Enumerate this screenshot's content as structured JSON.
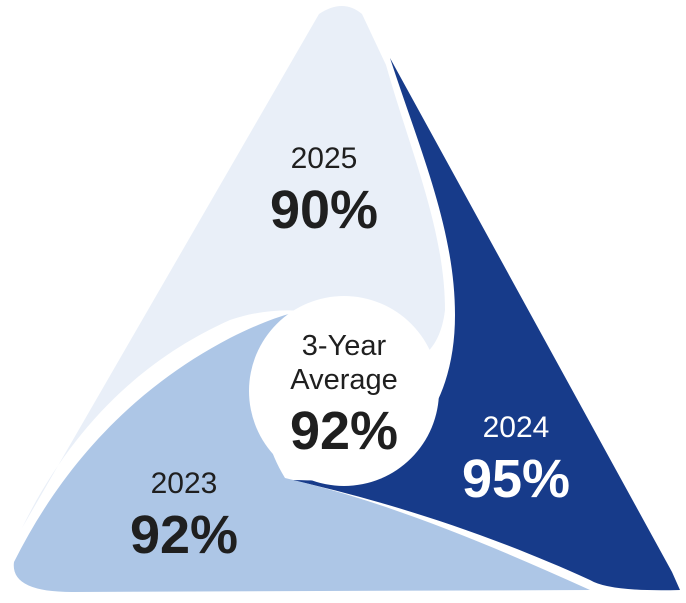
{
  "segments": [
    {
      "year": "2025",
      "percent": "90%",
      "value": 90,
      "color": "#e9eff8",
      "text_color": "#1f1f1f"
    },
    {
      "year": "2024",
      "percent": "95%",
      "value": 95,
      "color": "#173b8a",
      "text_color": "#ffffff"
    },
    {
      "year": "2023",
      "percent": "92%",
      "value": 92,
      "color": "#adc6e6",
      "text_color": "#1f1f1f"
    }
  ],
  "center": {
    "line1": "3-Year",
    "line2": "Average",
    "percent": "92%",
    "value": 92,
    "color": "#ffffff",
    "text_color": "#1f1f1f"
  }
}
